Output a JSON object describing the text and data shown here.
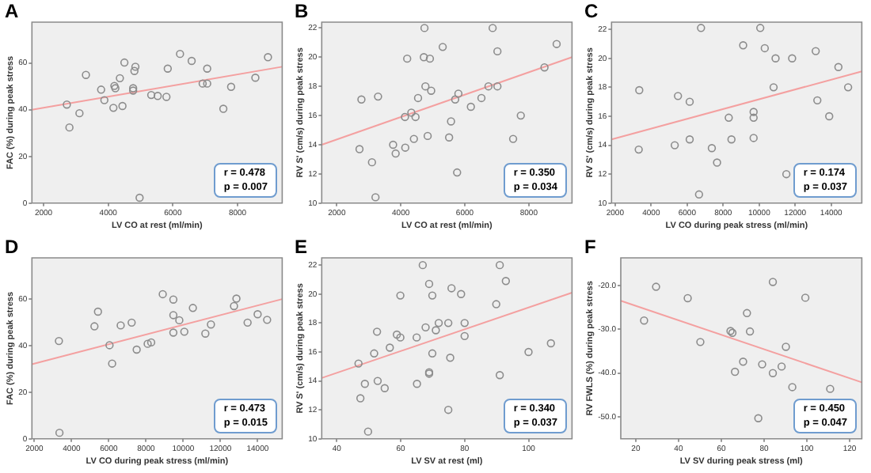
{
  "chart_data": [
    {
      "type": "scatter",
      "title": "A",
      "xlabel": "LV CO at rest (ml/min)",
      "ylabel": "FAC (%) during peak stress",
      "annotations": [
        "r = 0.478",
        "p = 0.007"
      ],
      "xlim": [
        1640,
        9380
      ],
      "ylim": [
        0,
        77.5
      ],
      "xticks": [
        2000,
        4000,
        6000,
        8000
      ],
      "yticks": [
        0,
        20,
        40,
        60
      ],
      "grid": false,
      "legend": false,
      "series": [
        {
          "type": "scatter",
          "marker": "circle",
          "color": "#8c8c8c",
          "x": [
            2720,
            2800,
            3110,
            3310,
            3780,
            3880,
            4190,
            4220,
            4160,
            4360,
            4440,
            4500,
            4810,
            4840,
            4770,
            4770,
            4970,
            5330,
            5530,
            5800,
            5840,
            6220,
            6580,
            6920,
            7060,
            7060,
            7560,
            7800,
            8550,
            8940
          ],
          "values": [
            42.2,
            32.4,
            38.5,
            54.9,
            48.6,
            44.1,
            50.2,
            49.2,
            40.8,
            53.5,
            41.6,
            60.2,
            56.6,
            58.4,
            49.2,
            48.2,
            2.3,
            46.3,
            45.9,
            45.5,
            57.6,
            63.9,
            60.9,
            51.2,
            51.2,
            57.6,
            40.4,
            49.8,
            53.7,
            62.5
          ]
        },
        {
          "type": "line",
          "color": "#f4a0a0",
          "x": [
            1640,
            9380
          ],
          "values": [
            40,
            58.4
          ]
        }
      ]
    },
    {
      "type": "scatter",
      "title": "B",
      "xlabel": "LV CO at rest (ml/min)",
      "ylabel": "RV S' (cm/s) during peak stress",
      "annotations": [
        "r = 0.350",
        "p = 0.034"
      ],
      "xlim": [
        1530,
        9350
      ],
      "ylim": [
        10,
        22.4
      ],
      "xticks": [
        2000,
        4000,
        6000,
        8000
      ],
      "yticks": [
        10,
        12,
        14,
        16,
        18,
        20,
        22
      ],
      "grid": false,
      "legend": false,
      "series": [
        {
          "type": "scatter",
          "marker": "circle",
          "color": "#8c8c8c",
          "x": [
            2710,
            2770,
            3100,
            3210,
            3290,
            3760,
            3840,
            4140,
            4130,
            4200,
            4330,
            4410,
            4460,
            4540,
            4720,
            4740,
            4770,
            4840,
            4910,
            4950,
            5310,
            5510,
            5570,
            5700,
            5760,
            5800,
            6190,
            6520,
            6740,
            6870,
            7020,
            7020,
            7510,
            7750,
            8490,
            8870
          ],
          "values": [
            13.7,
            17.1,
            12.8,
            10.4,
            17.3,
            14.0,
            13.4,
            13.8,
            15.9,
            19.9,
            16.2,
            14.4,
            15.9,
            17.2,
            20.0,
            22.0,
            18.0,
            14.6,
            19.9,
            17.7,
            20.7,
            14.5,
            15.6,
            17.1,
            12.1,
            17.5,
            16.6,
            17.2,
            18.0,
            22.0,
            18.0,
            20.4,
            14.4,
            16.0,
            19.3,
            20.9
          ]
        },
        {
          "type": "line",
          "color": "#f4a0a0",
          "x": [
            1530,
            9350
          ],
          "values": [
            14.0,
            20.0
          ]
        }
      ]
    },
    {
      "type": "scatter",
      "title": "C",
      "xlabel": "LV CO during peak stress (ml/min)",
      "ylabel": "RV S' (cm/s) during peak stress",
      "annotations": [
        "r = 0.174",
        "p = 0.037"
      ],
      "xlim": [
        1800,
        15700
      ],
      "ylim": [
        10,
        22.5
      ],
      "xticks": [
        2000,
        4000,
        6000,
        8000,
        10000,
        12000,
        14000
      ],
      "yticks": [
        10,
        12,
        14,
        16,
        18,
        20,
        22
      ],
      "grid": false,
      "legend": false,
      "series": [
        {
          "type": "scatter",
          "marker": "circle",
          "color": "#8c8c8c",
          "x": [
            3340,
            3310,
            5310,
            5490,
            6140,
            6140,
            6660,
            6770,
            7370,
            7660,
            8310,
            8460,
            9110,
            9690,
            9690,
            9690,
            10060,
            10310,
            10800,
            10910,
            11830,
            11510,
            13140,
            13230,
            13890,
            14400,
            14940
          ],
          "values": [
            17.8,
            13.7,
            14.0,
            17.4,
            17.0,
            14.4,
            10.6,
            22.1,
            13.8,
            12.8,
            15.9,
            14.4,
            20.9,
            16.3,
            15.9,
            14.5,
            22.1,
            20.7,
            18.0,
            20.0,
            20.0,
            12.0,
            20.5,
            17.1,
            16.0,
            19.4,
            18.0
          ]
        },
        {
          "type": "line",
          "color": "#f4a0a0",
          "x": [
            1800,
            15700
          ],
          "values": [
            14.4,
            19.1
          ]
        }
      ]
    },
    {
      "type": "scatter",
      "title": "D",
      "xlabel": "LV CO during peak stress (ml/min)",
      "ylabel": "FAC (%) during peak stress",
      "annotations": [
        "r = 0.473",
        "p = 0.015"
      ],
      "xlim": [
        1870,
        15320
      ],
      "ylim": [
        0,
        77.7
      ],
      "xticks": [
        2000,
        4000,
        6000,
        8000,
        10000,
        12000,
        14000
      ],
      "yticks": [
        0,
        20,
        40,
        60
      ],
      "grid": false,
      "legend": false,
      "series": [
        {
          "type": "scatter",
          "marker": "circle",
          "color": "#8c8c8c",
          "x": [
            3320,
            3350,
            5230,
            5420,
            6040,
            6180,
            6640,
            7230,
            7500,
            8090,
            8280,
            8900,
            9470,
            9470,
            9470,
            9790,
            10060,
            10520,
            11190,
            11490,
            12730,
            12860,
            13460,
            14000,
            14510
          ],
          "values": [
            42.0,
            2.6,
            48.3,
            54.6,
            40.2,
            32.3,
            48.7,
            49.9,
            38.3,
            40.8,
            41.4,
            62.1,
            59.8,
            53.1,
            45.6,
            50.9,
            46.0,
            56.2,
            45.2,
            49.1,
            57.0,
            60.2,
            49.9,
            53.5,
            51.1
          ]
        },
        {
          "type": "line",
          "color": "#f4a0a0",
          "x": [
            1870,
            15320
          ],
          "values": [
            32.0,
            60.0
          ]
        }
      ]
    },
    {
      "type": "scatter",
      "title": "E",
      "xlabel": "LV SV at rest (ml)",
      "ylabel": "RV S' (cm/s) during peak stress",
      "annotations": [
        "r = 0.340",
        "p = 0.037"
      ],
      "xlim": [
        35.3,
        113.6
      ],
      "ylim": [
        10,
        22.5
      ],
      "xticks": [
        40,
        60,
        80,
        100
      ],
      "yticks": [
        10,
        12,
        14,
        16,
        18,
        20,
        22
      ],
      "grid": false,
      "legend": false,
      "series": [
        {
          "type": "scatter",
          "marker": "circle",
          "color": "#8c8c8c",
          "x": [
            46.8,
            47.4,
            48.8,
            49.8,
            51.7,
            52.6,
            52.8,
            55.0,
            56.6,
            58.8,
            59.9,
            59.9,
            65.0,
            65.1,
            66.9,
            67.8,
            68.9,
            68.9,
            68.9,
            69.9,
            69.9,
            71.0,
            71.9,
            74.9,
            74.9,
            75.5,
            75.9,
            78.9,
            80.0,
            80.0,
            89.9,
            91.0,
            91.0,
            92.9,
            100.0,
            107.0
          ],
          "values": [
            15.2,
            12.8,
            13.8,
            10.5,
            15.9,
            17.4,
            14.0,
            13.5,
            16.3,
            17.2,
            17.0,
            19.9,
            17.0,
            13.8,
            22.0,
            17.7,
            20.7,
            14.6,
            14.5,
            19.9,
            15.9,
            17.5,
            18.0,
            18.0,
            12.0,
            15.6,
            20.4,
            20.0,
            18.0,
            17.1,
            19.3,
            22.0,
            14.4,
            20.9,
            16.0,
            16.6
          ]
        },
        {
          "type": "line",
          "color": "#f4a0a0",
          "x": [
            35.3,
            113.6
          ],
          "values": [
            14.2,
            20.1
          ]
        }
      ]
    },
    {
      "type": "scatter",
      "title": "F",
      "xlabel": "LV SV during peak stress (ml)",
      "ylabel": "RV FWLS (%) during peak stress",
      "annotations": [
        "r = 0.450",
        "p = 0.047"
      ],
      "xlim": [
        13,
        125.7
      ],
      "ylim": [
        -55,
        -13.7
      ],
      "xticks": [
        20,
        40,
        60,
        80,
        100,
        120
      ],
      "yticks": [
        {
          "value": -50,
          "label": "-50.0"
        },
        {
          "value": -40,
          "label": "-40.0"
        },
        {
          "value": -30,
          "label": "-30.0"
        },
        {
          "value": -20,
          "label": "-20.0"
        }
      ],
      "grid": false,
      "legend": false,
      "series": [
        {
          "type": "scatter",
          "marker": "circle",
          "color": "#8c8c8c",
          "x": [
            23.9,
            29.5,
            44.3,
            50.2,
            64.3,
            65.2,
            66.4,
            70.2,
            72.0,
            73.4,
            77.3,
            79.1,
            84.1,
            84.1,
            88.2,
            90.2,
            93.2,
            99.3,
            110.9
          ],
          "values": [
            -28.0,
            -20.3,
            -22.9,
            -32.9,
            -30.4,
            -30.8,
            -39.7,
            -37.4,
            -26.3,
            -30.5,
            -50.3,
            -38.0,
            -19.2,
            -40.0,
            -38.5,
            -34.0,
            -43.2,
            -22.8,
            -43.6
          ]
        },
        {
          "type": "line",
          "color": "#f4a0a0",
          "x": [
            13,
            125.7
          ],
          "values": [
            -23.5,
            -42.1
          ]
        }
      ]
    }
  ]
}
